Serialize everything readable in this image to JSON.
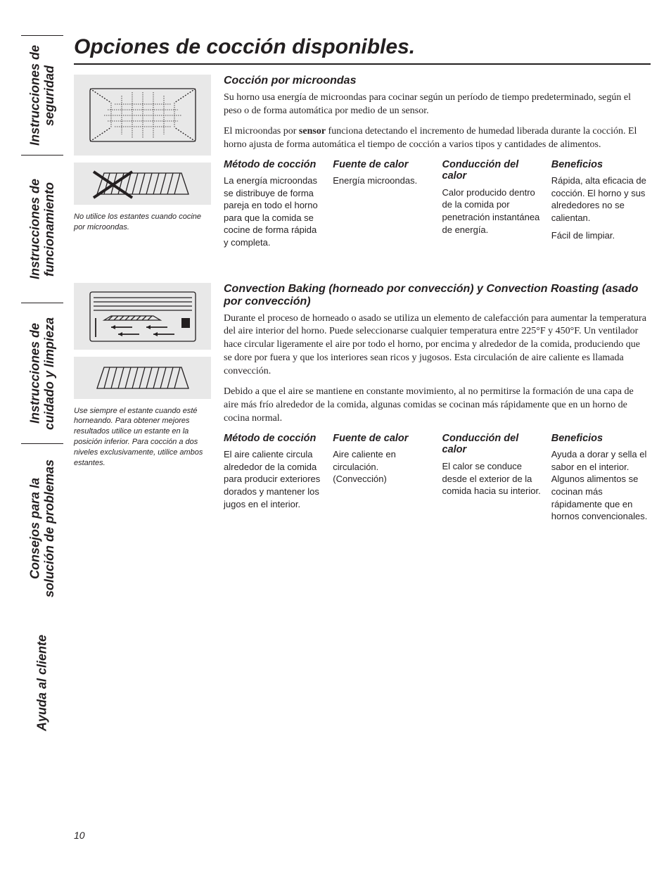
{
  "page_number": "10",
  "page_title": "Opciones de cocción disponibles.",
  "sidebar": {
    "items": [
      {
        "label": "Instrucciones de\nseguridad"
      },
      {
        "label": "Instrucciones de\nfuncionamiento"
      },
      {
        "label": "Instrucciones de\ncuidado y limpieza"
      },
      {
        "label": "Consejos para la\nsolución de problemas"
      },
      {
        "label": "Ayuda al cliente"
      }
    ]
  },
  "sections": [
    {
      "caption": "No utilice los estantes cuando cocine por microondas.",
      "heading": "Cocción por microondas",
      "intro": [
        "Su horno usa energía de microondas para cocinar según un período de tiempo predeterminado, según el peso o de forma automática por medio de un sensor.",
        "El microondas por <strong>sensor</strong> funciona detectando el incremento de humedad liberada durante la cocción. El horno ajusta de forma automática el tiempo de cocción a varios tipos y cantidades de alimentos."
      ],
      "columns": {
        "method": {
          "h": "Método de cocción",
          "body": [
            "La energía microondas se distribuye de forma pareja en todo el horno para que la comida se cocine de forma rápida y completa."
          ]
        },
        "source": {
          "h": "Fuente de calor",
          "body": [
            "Energía microondas."
          ]
        },
        "conduction": {
          "h": "Conducción del calor",
          "body": [
            "Calor producido dentro de la comida por penetración instantánea de energía."
          ]
        },
        "benefits": {
          "h": "Beneficios",
          "body": [
            "Rápida, alta eficacia de cocción. El horno y sus alrededores no se calientan.",
            "Fácil de limpiar."
          ]
        }
      }
    },
    {
      "caption": "Use siempre el estante cuando esté horneando. Para obtener mejores resultados utilice un estante en la posición inferior. Para cocción a dos niveles exclusivamente, utilice ambos estantes.",
      "heading": "Convection Baking (horneado por convección) y Convection Roasting (asado por convección)",
      "intro": [
        "Durante el proceso de horneado o asado se utiliza un elemento de calefacción para aumentar la temperatura del aire interior del horno. Puede seleccionarse cualquier temperatura entre 225°F y 450°F. Un ventilador hace circular ligeramente el aire por todo el horno, por encima y alrededor de la comida, produciendo que se dore por fuera y que los interiores sean ricos y jugosos. Esta circulación de aire caliente es llamada convección.",
        "Debido a que el aire se mantiene en constante movimiento, al no permitirse la formación de una capa de aire más frío alrededor de la comida, algunas comidas se cocinan más rápidamente que en un horno de cocina normal."
      ],
      "columns": {
        "method": {
          "h": "Método de cocción",
          "body": [
            "El aire caliente circula alrededor de la comida para producir exteriores dorados y mantener los jugos en el interior."
          ]
        },
        "source": {
          "h": "Fuente de calor",
          "body": [
            "Aire caliente en circulación. (Convección)"
          ]
        },
        "conduction": {
          "h": "Conducción del calor",
          "body": [
            "El calor se conduce desde el exterior de la comida hacia su interior."
          ]
        },
        "benefits": {
          "h": "Beneficios",
          "body": [
            "Ayuda a dorar y sella el sabor en el interior. Algunos alimentos se cocinan más rápidamente que en hornos convencionales."
          ]
        }
      }
    }
  ],
  "colors": {
    "text": "#231f20",
    "bg": "#ffffff",
    "figure_bg": "#e8e8e8"
  }
}
